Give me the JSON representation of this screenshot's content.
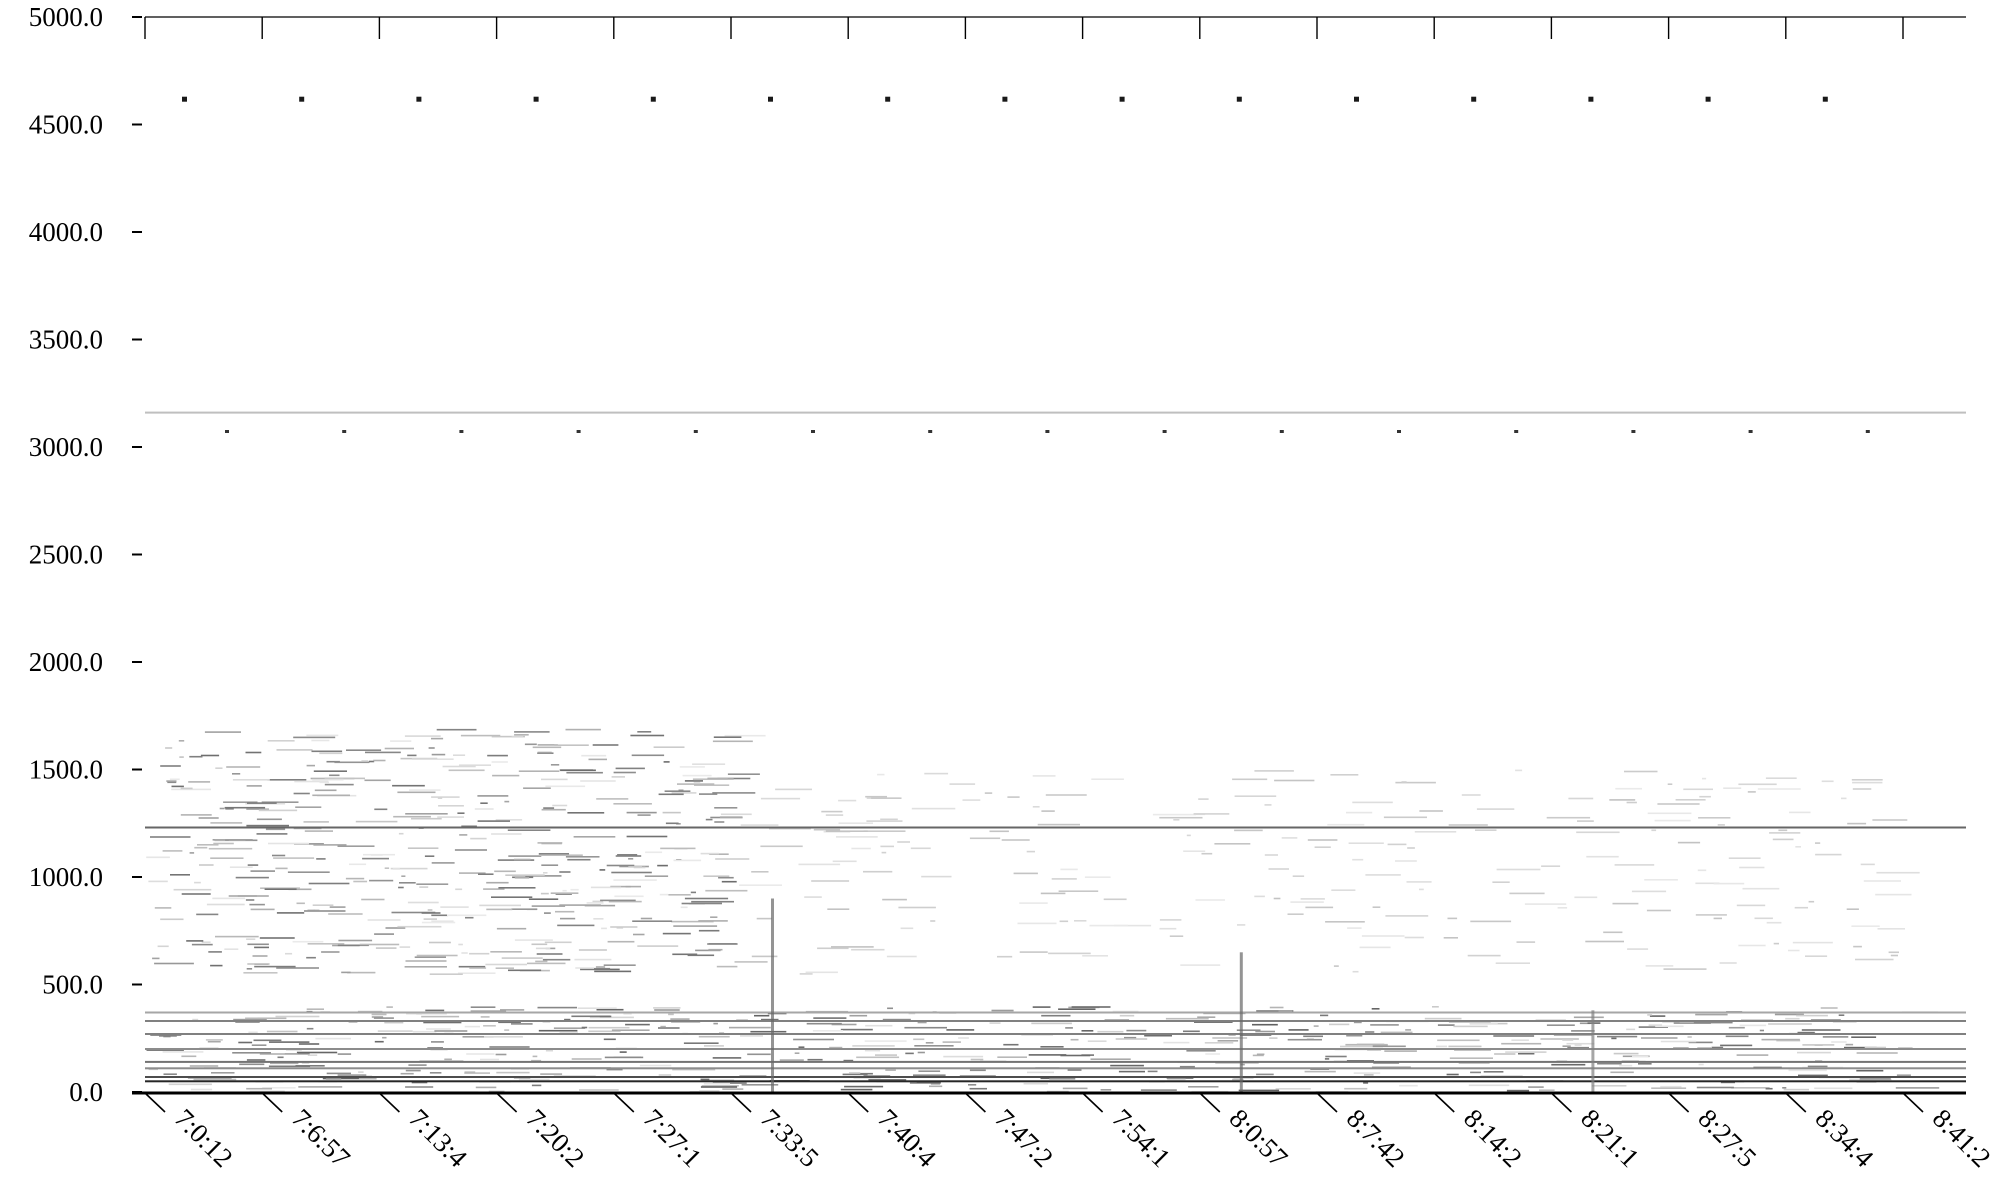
{
  "chart_data": {
    "type": "heatmap",
    "title": "",
    "xlabel": "",
    "ylabel": "",
    "ylim": [
      0,
      5000
    ],
    "y_ticks": [
      "0.0",
      "500.0",
      "1000.0",
      "1500.0",
      "2000.0",
      "2500.0",
      "3000.0",
      "3500.0",
      "4000.0",
      "4500.0",
      "5000.0"
    ],
    "x_tick_labels": [
      "7:0:12",
      "7:6:57",
      "7:13:4",
      "7:20:2",
      "7:27:1",
      "7:33:5",
      "7:40:4",
      "7:47:2",
      "7:54:1",
      "8:0:57",
      "8:7:42",
      "8:14:2",
      "8:21:1",
      "8:27:5",
      "8:34:4",
      "8:41:2"
    ],
    "grid": false,
    "colormap": "white-to-black",
    "constant_bands": [
      {
        "y": 50,
        "intensity": 0.85
      },
      {
        "y": 70,
        "intensity": 0.7
      },
      {
        "y": 110,
        "intensity": 0.45
      },
      {
        "y": 140,
        "intensity": 0.55
      },
      {
        "y": 200,
        "intensity": 0.45
      },
      {
        "y": 270,
        "intensity": 0.5
      },
      {
        "y": 330,
        "intensity": 0.5
      },
      {
        "y": 370,
        "intensity": 0.35
      },
      {
        "y": 1230,
        "intensity": 0.6
      },
      {
        "y": 3160,
        "intensity": 0.25
      }
    ],
    "periodic_marks": [
      {
        "y": 4620,
        "intensity": 0.9
      },
      {
        "y": 3070,
        "intensity": 0.8
      }
    ],
    "activity_regions": [
      {
        "x_start": "7:0:12",
        "x_end": "7:33:5",
        "y_range": [
          550,
          1700
        ],
        "density": 0.55
      },
      {
        "x_start": "7:33:5",
        "x_end": "8:41:2",
        "y_range": [
          550,
          1500
        ],
        "density": 0.18
      },
      {
        "x_start": "7:0:12",
        "x_end": "8:41:2",
        "y_range": [
          0,
          400
        ],
        "density": 0.6
      }
    ],
    "spikes": [
      {
        "x": "7:33:5",
        "y_range": [
          0,
          900
        ],
        "intensity": 0.6
      },
      {
        "x": "8:0:57",
        "y_range": [
          0,
          650
        ],
        "intensity": 0.6
      },
      {
        "x": "8:21:1",
        "y_range": [
          0,
          380
        ],
        "intensity": 0.5
      }
    ],
    "colors": {
      "background": "#ffffff",
      "axis": "#000000",
      "ink": "#000000"
    }
  }
}
